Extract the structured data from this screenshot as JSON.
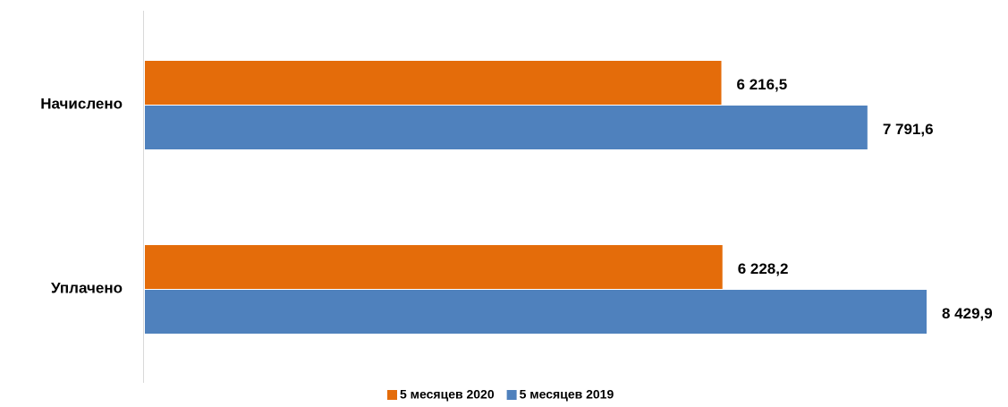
{
  "chart_data": {
    "type": "barh",
    "categories": [
      "Начислено",
      "Уплачено"
    ],
    "series": [
      {
        "name": "5 месяцев 2020",
        "color": "#e46c0a",
        "values": [
          6216.5,
          6228.2
        ],
        "value_labels": [
          "6 216,5",
          "6 228,2"
        ]
      },
      {
        "name": "5 месяцев 2019",
        "color": "#4f81bd",
        "values": [
          7791.6,
          8429.9
        ],
        "value_labels": [
          "7 791,6",
          "8 429,9"
        ]
      }
    ],
    "legend": "bottom"
  }
}
